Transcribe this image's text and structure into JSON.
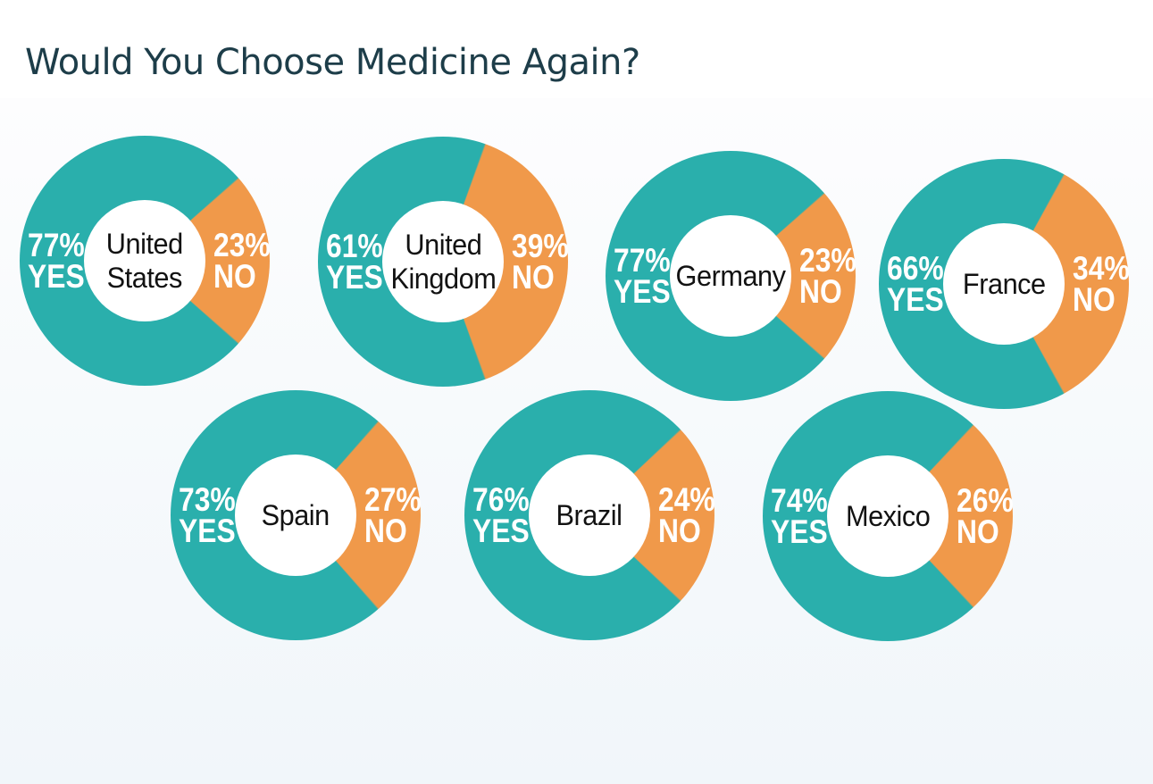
{
  "page": {
    "title": "Would You Choose Medicine Again?"
  },
  "colors": {
    "yes_slice": "#2AAFAC",
    "no_slice": "#F0994A",
    "title_text": "#1D3D49",
    "label_text": "#FFFFFF",
    "country_text": "#121212",
    "background_top": "#FDFDFE",
    "background_bottom": "#F1F6FA"
  },
  "chart_data": {
    "type": "pie",
    "variant": "donut-small-multiples",
    "title": "Would You Choose Medicine Again?",
    "legend_position": "none",
    "series_labels": [
      "YES",
      "NO"
    ],
    "no_slice_centered_at_deg": 90,
    "charts": [
      {
        "country": "United States",
        "yes": 77,
        "no": 23,
        "yes_label": "77%",
        "no_label": "23%"
      },
      {
        "country": "United Kingdom",
        "yes": 61,
        "no": 39,
        "yes_label": "61%",
        "no_label": "39%"
      },
      {
        "country": "Germany",
        "yes": 77,
        "no": 23,
        "yes_label": "77%",
        "no_label": "23%"
      },
      {
        "country": "France",
        "yes": 66,
        "no": 34,
        "yes_label": "66%",
        "no_label": "34%"
      },
      {
        "country": "Spain",
        "yes": 73,
        "no": 27,
        "yes_label": "73%",
        "no_label": "27%"
      },
      {
        "country": "Brazil",
        "yes": 76,
        "no": 24,
        "yes_label": "76%",
        "no_label": "24%"
      },
      {
        "country": "Mexico",
        "yes": 74,
        "no": 26,
        "yes_label": "74%",
        "no_label": "26%"
      }
    ]
  }
}
